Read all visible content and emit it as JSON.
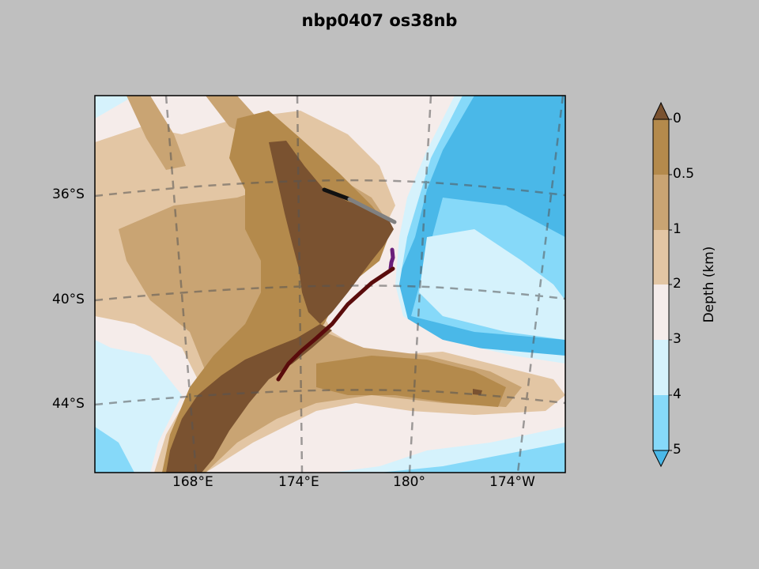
{
  "title": "nbp0407 os38nb",
  "map": {
    "lat_labels": [
      "36°S",
      "40°S",
      "44°S"
    ],
    "lon_labels": [
      "168°E",
      "174°E",
      "180°",
      "174°W"
    ],
    "depth_colors": [
      "#7a5230",
      "#b48a4c",
      "#c9a473",
      "#e3c6a4",
      "#f5ecea",
      "#d5f2fc",
      "#86d9f9",
      "#4ab8e8"
    ],
    "track_colors": {
      "north_segment_1": "#111111",
      "north_segment_2": "#808080",
      "central": "#6a1f7a",
      "south": "#5a0c0c"
    }
  },
  "colorbar": {
    "label": "Depth (km)",
    "ticks": [
      "0",
      "0.5",
      "1",
      "2",
      "3",
      "4",
      "5"
    ]
  }
}
